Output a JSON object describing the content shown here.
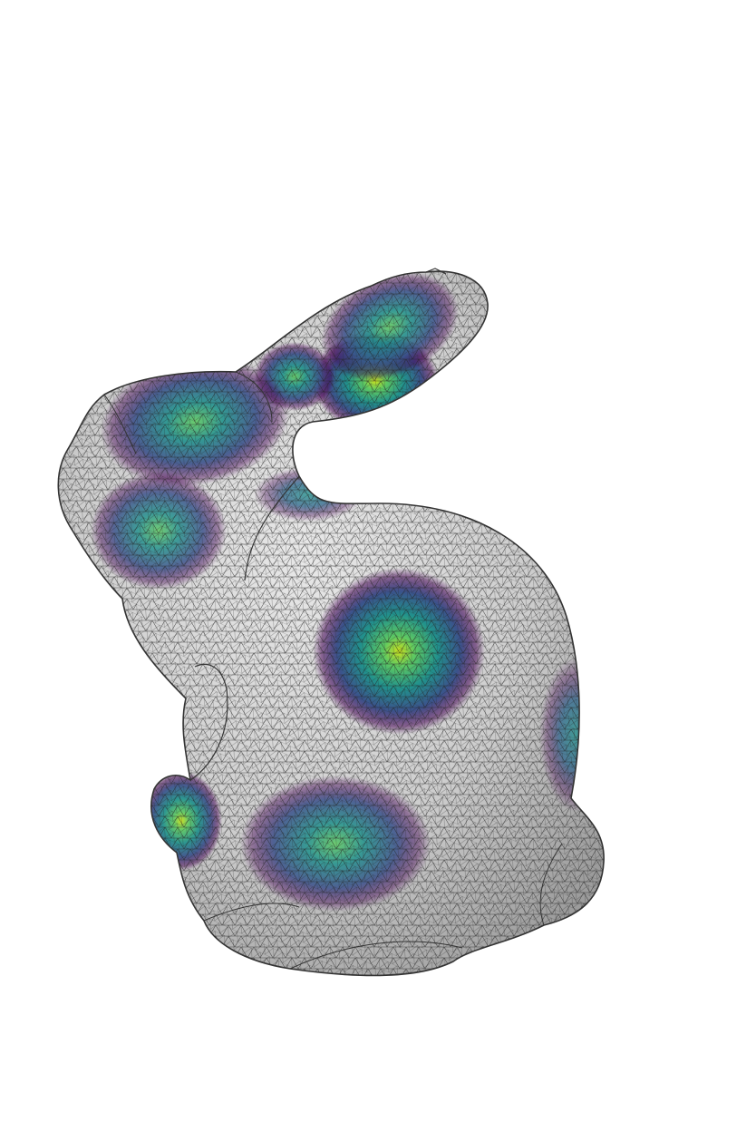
{
  "render": {
    "subject": "bunny-mesh",
    "background": "#ffffff",
    "mesh_fill": "#cfcfcf",
    "mesh_shade": "#9a9a9a",
    "wire_color": "#2a2a2a",
    "outline_color": "#3a3a3a",
    "colormap": [
      "#44015480",
      "#3b528b",
      "#21918c",
      "#5ec962",
      "#c8e020"
    ]
  },
  "hotspots": [
    {
      "name": "hotspot-ear-tip",
      "peak": 0.95
    },
    {
      "name": "hotspot-ear-middle",
      "peak": 0.7
    },
    {
      "name": "hotspot-ear-base",
      "peak": 0.8
    },
    {
      "name": "hotspot-head-top",
      "peak": 0.75
    },
    {
      "name": "hotspot-face",
      "peak": 0.65
    },
    {
      "name": "hotspot-neck",
      "peak": 0.55
    },
    {
      "name": "hotspot-back",
      "peak": 0.95
    },
    {
      "name": "hotspot-side",
      "peak": 0.55
    },
    {
      "name": "hotspot-belly",
      "peak": 0.7
    },
    {
      "name": "hotspot-front-paw",
      "peak": 0.8
    }
  ]
}
